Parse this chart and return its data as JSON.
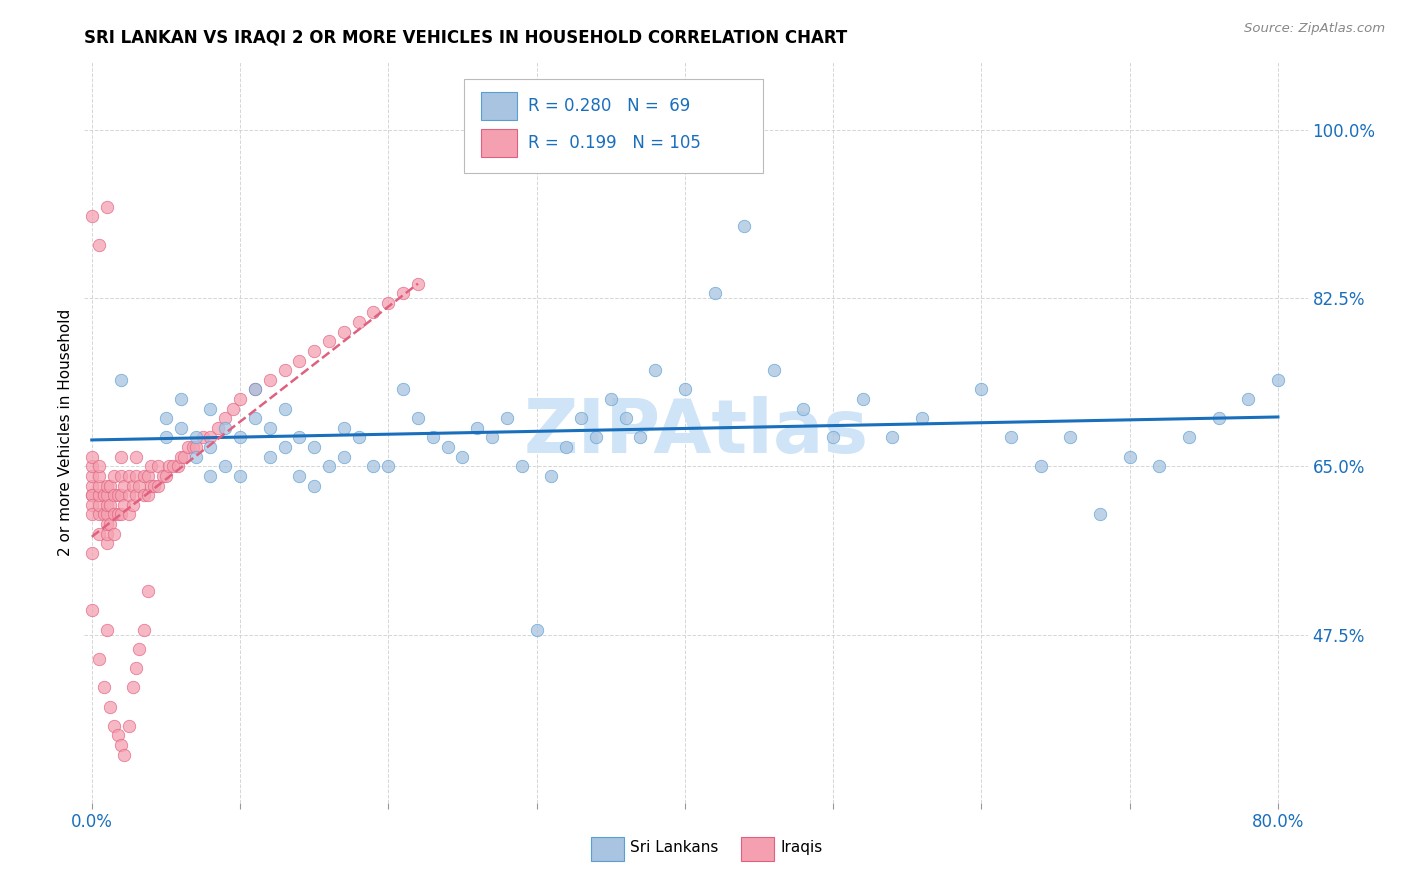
{
  "title": "SRI LANKAN VS IRAQI 2 OR MORE VEHICLES IN HOUSEHOLD CORRELATION CHART",
  "source": "Source: ZipAtlas.com",
  "ylabel": "2 or more Vehicles in Household",
  "ytick_labels": [
    "47.5%",
    "65.0%",
    "82.5%",
    "100.0%"
  ],
  "ytick_values": [
    0.475,
    0.65,
    0.825,
    1.0
  ],
  "xlim": [
    -0.005,
    0.82
  ],
  "ylim": [
    0.3,
    1.07
  ],
  "legend_blue_label": "Sri Lankans",
  "legend_pink_label": "Iraqis",
  "blue_color": "#a8c4e0",
  "pink_color": "#f4a0b0",
  "blue_edge_color": "#5a9fd4",
  "pink_edge_color": "#e06080",
  "trendline_blue_color": "#1a6fbd",
  "trendline_pink_color": "#e06080",
  "watermark_color": "#d0e4f7",
  "sri_lankan_x": [
    0.02,
    0.05,
    0.05,
    0.06,
    0.06,
    0.07,
    0.07,
    0.08,
    0.08,
    0.08,
    0.09,
    0.09,
    0.1,
    0.1,
    0.11,
    0.11,
    0.12,
    0.12,
    0.13,
    0.13,
    0.14,
    0.14,
    0.15,
    0.15,
    0.16,
    0.17,
    0.17,
    0.18,
    0.19,
    0.2,
    0.21,
    0.22,
    0.23,
    0.24,
    0.25,
    0.26,
    0.27,
    0.28,
    0.29,
    0.3,
    0.31,
    0.32,
    0.33,
    0.34,
    0.35,
    0.36,
    0.37,
    0.38,
    0.4,
    0.42,
    0.44,
    0.46,
    0.48,
    0.5,
    0.52,
    0.54,
    0.56,
    0.6,
    0.62,
    0.64,
    0.66,
    0.68,
    0.7,
    0.72,
    0.74,
    0.76,
    0.78,
    0.8
  ],
  "sri_lankan_y": [
    0.74,
    0.7,
    0.68,
    0.72,
    0.69,
    0.66,
    0.68,
    0.64,
    0.67,
    0.71,
    0.65,
    0.69,
    0.64,
    0.68,
    0.7,
    0.73,
    0.66,
    0.69,
    0.67,
    0.71,
    0.64,
    0.68,
    0.63,
    0.67,
    0.65,
    0.66,
    0.69,
    0.68,
    0.65,
    0.65,
    0.73,
    0.7,
    0.68,
    0.67,
    0.66,
    0.69,
    0.68,
    0.7,
    0.65,
    0.48,
    0.64,
    0.67,
    0.7,
    0.68,
    0.72,
    0.7,
    0.68,
    0.75,
    0.73,
    0.83,
    0.9,
    0.75,
    0.71,
    0.68,
    0.72,
    0.68,
    0.7,
    0.73,
    0.68,
    0.65,
    0.68,
    0.6,
    0.66,
    0.65,
    0.68,
    0.7,
    0.72,
    0.74
  ],
  "iraqi_x": [
    0.0,
    0.0,
    0.0,
    0.0,
    0.0,
    0.0,
    0.0,
    0.0,
    0.005,
    0.005,
    0.005,
    0.005,
    0.005,
    0.005,
    0.005,
    0.008,
    0.008,
    0.01,
    0.01,
    0.01,
    0.01,
    0.01,
    0.01,
    0.01,
    0.012,
    0.012,
    0.012,
    0.015,
    0.015,
    0.015,
    0.015,
    0.018,
    0.018,
    0.02,
    0.02,
    0.02,
    0.02,
    0.022,
    0.022,
    0.025,
    0.025,
    0.025,
    0.028,
    0.028,
    0.03,
    0.03,
    0.03,
    0.032,
    0.035,
    0.035,
    0.038,
    0.038,
    0.04,
    0.04,
    0.042,
    0.045,
    0.045,
    0.048,
    0.05,
    0.052,
    0.055,
    0.058,
    0.06,
    0.062,
    0.065,
    0.068,
    0.07,
    0.075,
    0.08,
    0.085,
    0.09,
    0.095,
    0.1,
    0.11,
    0.12,
    0.13,
    0.14,
    0.15,
    0.16,
    0.17,
    0.18,
    0.19,
    0.2,
    0.21,
    0.22,
    0.0,
    0.0,
    0.005,
    0.008,
    0.01,
    0.012,
    0.015,
    0.018,
    0.02,
    0.022,
    0.025,
    0.028,
    0.03,
    0.032,
    0.035,
    0.038,
    0.0,
    0.005,
    0.01
  ],
  "iraqi_y": [
    0.62,
    0.63,
    0.64,
    0.65,
    0.66,
    0.62,
    0.61,
    0.6,
    0.58,
    0.6,
    0.61,
    0.62,
    0.63,
    0.64,
    0.65,
    0.6,
    0.62,
    0.57,
    0.58,
    0.59,
    0.6,
    0.61,
    0.62,
    0.63,
    0.59,
    0.61,
    0.63,
    0.58,
    0.6,
    0.62,
    0.64,
    0.6,
    0.62,
    0.6,
    0.62,
    0.64,
    0.66,
    0.61,
    0.63,
    0.6,
    0.62,
    0.64,
    0.61,
    0.63,
    0.62,
    0.64,
    0.66,
    0.63,
    0.62,
    0.64,
    0.62,
    0.64,
    0.63,
    0.65,
    0.63,
    0.63,
    0.65,
    0.64,
    0.64,
    0.65,
    0.65,
    0.65,
    0.66,
    0.66,
    0.67,
    0.67,
    0.67,
    0.68,
    0.68,
    0.69,
    0.7,
    0.71,
    0.72,
    0.73,
    0.74,
    0.75,
    0.76,
    0.77,
    0.78,
    0.79,
    0.8,
    0.81,
    0.82,
    0.83,
    0.84,
    0.56,
    0.5,
    0.45,
    0.42,
    0.48,
    0.4,
    0.38,
    0.37,
    0.36,
    0.35,
    0.38,
    0.42,
    0.44,
    0.46,
    0.48,
    0.52,
    0.91,
    0.88,
    0.92
  ]
}
